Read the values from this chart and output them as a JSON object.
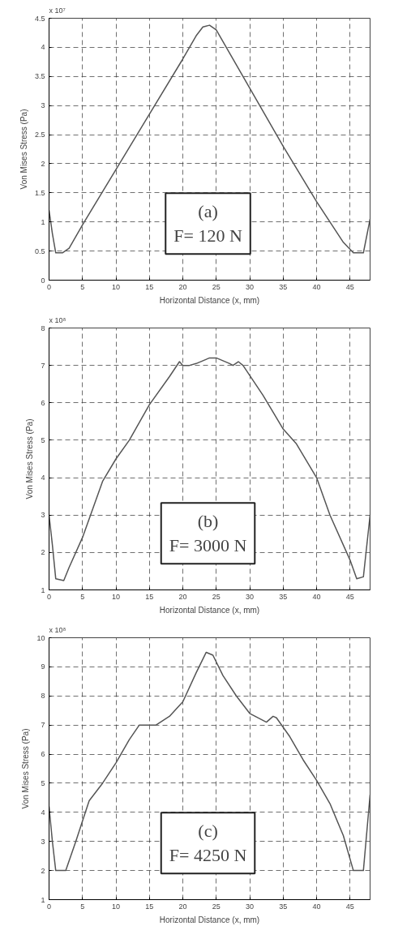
{
  "chart_data": [
    {
      "type": "line",
      "xlabel": "Horizontal Distance (x, mm)",
      "ylabel": "Von Mises Stress (Pa)",
      "annotations": [
        "x 10⁷",
        "(a)",
        "F= 120 N"
      ],
      "xlim": [
        0,
        48
      ],
      "ylim": [
        0,
        4.5
      ],
      "xticks": [
        0,
        5,
        10,
        15,
        20,
        25,
        30,
        35,
        40,
        45
      ],
      "yticks": [
        0,
        0.5,
        1,
        1.5,
        2,
        2.5,
        3,
        3.5,
        4,
        4.5
      ],
      "grid": true,
      "line_style": "solid",
      "series": [
        {
          "color": "#555555",
          "x": [
            0,
            0.5,
            1,
            2,
            3,
            5,
            10,
            15,
            20,
            22,
            23,
            24,
            25,
            30,
            35,
            40,
            44,
            45.5,
            47,
            48
          ],
          "values": [
            1.2,
            0.8,
            0.47,
            0.47,
            0.55,
            0.95,
            1.9,
            2.85,
            3.8,
            4.2,
            4.35,
            4.38,
            4.3,
            3.3,
            2.3,
            1.35,
            0.65,
            0.47,
            0.47,
            1.05
          ]
        }
      ]
    },
    {
      "type": "line",
      "xlabel": "Horizontal Distance (x, mm)",
      "ylabel": "Von Mises Stress (Pa)",
      "annotations": [
        "x 10⁸",
        "(b)",
        "F= 3000 N"
      ],
      "xlim": [
        0,
        48
      ],
      "ylim": [
        1,
        8
      ],
      "xticks": [
        0,
        5,
        10,
        15,
        20,
        25,
        30,
        35,
        40,
        45
      ],
      "yticks": [
        1,
        2,
        3,
        4,
        5,
        6,
        7,
        8
      ],
      "grid": true,
      "line_style": "solid",
      "series": [
        {
          "color": "#555555",
          "x": [
            0,
            0.5,
            1,
            2.2,
            3,
            5,
            8,
            10,
            12,
            15,
            18,
            19.5,
            20,
            21,
            22,
            24,
            25,
            27,
            27.5,
            28.3,
            29,
            32,
            35,
            37,
            40,
            42,
            45,
            46,
            47,
            48
          ],
          "values": [
            3.0,
            2.2,
            1.3,
            1.25,
            1.6,
            2.4,
            3.9,
            4.5,
            5.0,
            5.95,
            6.7,
            7.1,
            7.0,
            7.0,
            7.05,
            7.2,
            7.2,
            7.05,
            7.0,
            7.1,
            7.0,
            6.2,
            5.3,
            4.9,
            4.0,
            3.0,
            1.8,
            1.3,
            1.35,
            3.0
          ]
        }
      ]
    },
    {
      "type": "line",
      "xlabel": "Horizontal Distance (x, mm)",
      "ylabel": "Von Mises Stress (Pa)",
      "annotations": [
        "x 10⁸",
        "(c)",
        "F= 4250 N"
      ],
      "xlim": [
        0,
        48
      ],
      "ylim": [
        1,
        10
      ],
      "xticks": [
        0,
        5,
        10,
        15,
        20,
        25,
        30,
        35,
        40,
        45
      ],
      "yticks": [
        1,
        2,
        3,
        4,
        5,
        6,
        7,
        8,
        9,
        10
      ],
      "grid": true,
      "line_style": "solid",
      "series": [
        {
          "color": "#555555",
          "x": [
            0,
            0.5,
            1,
            2.5,
            4,
            5,
            6,
            8,
            10,
            12,
            13.5,
            16,
            18,
            20,
            22,
            23.5,
            24.5,
            26,
            28,
            30,
            32.5,
            33.5,
            34,
            36,
            38,
            40,
            42,
            44,
            45.5,
            47,
            48
          ],
          "values": [
            4.2,
            3.0,
            2.0,
            2.0,
            3.0,
            3.7,
            4.4,
            5.0,
            5.7,
            6.5,
            7.0,
            7.0,
            7.3,
            7.8,
            8.8,
            9.5,
            9.4,
            8.7,
            8.0,
            7.4,
            7.1,
            7.3,
            7.25,
            6.6,
            5.8,
            5.1,
            4.3,
            3.2,
            2.0,
            2.0,
            4.6
          ]
        }
      ]
    }
  ]
}
